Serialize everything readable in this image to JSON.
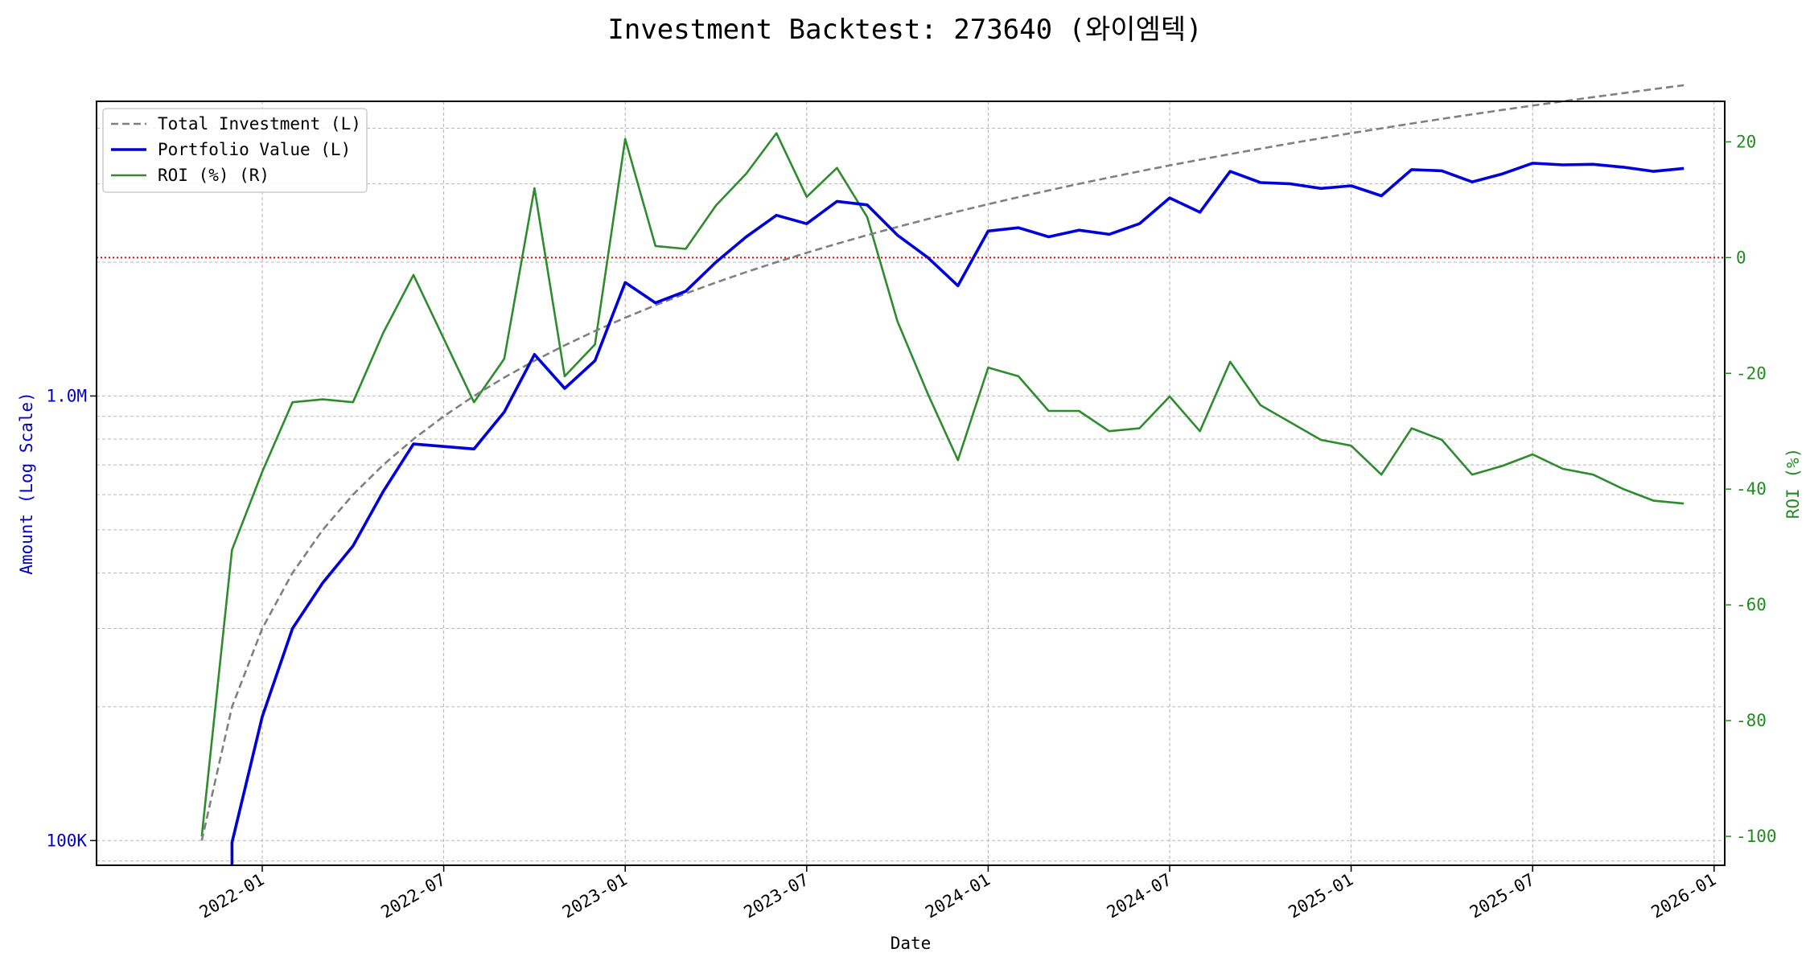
{
  "chart_data": {
    "type": "line",
    "title": "Investment Backtest: 273640 (와이엠텍)",
    "xlabel": "Date",
    "ylabel_left": "Amount (Log Scale)",
    "ylabel_right": "ROI (%)",
    "left_scale": "log",
    "left_ylim": [
      88000,
      4600000
    ],
    "right_ylim": [
      -105,
      27
    ],
    "grid": true,
    "legend_position": "top-left",
    "zero_roi_line_color": "#dd0000",
    "left_axis_color": "#0000cc",
    "right_axis_color": "#228b22",
    "x_ticks": [
      "2022-01",
      "2022-07",
      "2023-01",
      "2023-07",
      "2024-01",
      "2024-07",
      "2025-01",
      "2025-07",
      "2026-01"
    ],
    "left_ticks": [
      {
        "value": 100000,
        "label": "100K"
      },
      {
        "value": 1000000,
        "label": "1.0M"
      }
    ],
    "right_ticks": [
      {
        "value": 20,
        "label": "20"
      },
      {
        "value": 0,
        "label": "0"
      },
      {
        "value": -20,
        "label": "-20"
      },
      {
        "value": -40,
        "label": "-40"
      },
      {
        "value": -60,
        "label": "-60"
      },
      {
        "value": -80,
        "label": "-80"
      },
      {
        "value": -100,
        "label": "-100"
      }
    ],
    "x": [
      "2021-11",
      "2021-12",
      "2022-01",
      "2022-02",
      "2022-03",
      "2022-04",
      "2022-05",
      "2022-06",
      "2022-07",
      "2022-08",
      "2022-09",
      "2022-10",
      "2022-11",
      "2022-12",
      "2023-01",
      "2023-02",
      "2023-03",
      "2023-04",
      "2023-05",
      "2023-06",
      "2023-07",
      "2023-08",
      "2023-09",
      "2023-10",
      "2023-11",
      "2023-12",
      "2024-01",
      "2024-02",
      "2024-03",
      "2024-04",
      "2024-05",
      "2024-06",
      "2024-07",
      "2024-08",
      "2024-09",
      "2024-10",
      "2024-11",
      "2024-12",
      "2025-01",
      "2025-02",
      "2025-03",
      "2025-04",
      "2025-05",
      "2025-06",
      "2025-07",
      "2025-08",
      "2025-09",
      "2025-10",
      "2025-11",
      "2025-12"
    ],
    "series": [
      {
        "name": "Total Investment (L)",
        "axis": "left",
        "color": "#808080",
        "style": "dashed",
        "values": [
          100000,
          200000,
          300000,
          400000,
          500000,
          600000,
          700000,
          800000,
          900000,
          1000000,
          1100000,
          1200000,
          1300000,
          1400000,
          1500000,
          1600000,
          1700000,
          1800000,
          1900000,
          2000000,
          2100000,
          2200000,
          2300000,
          2400000,
          2500000,
          2600000,
          2700000,
          2800000,
          2900000,
          3000000,
          3100000,
          3200000,
          3300000,
          3400000,
          3500000,
          3600000,
          3700000,
          3800000,
          3900000,
          4000000,
          4100000,
          4200000,
          4300000,
          4400000,
          4500000,
          4600000,
          4700000,
          4800000,
          4900000,
          5000000
        ]
      },
      {
        "name": "Portfolio Value (L)",
        "axis": "left",
        "color": "#0000dd",
        "style": "solid",
        "values": [
          null,
          99000,
          190000,
          300000,
          380000,
          460000,
          610000,
          780000,
          770000,
          760000,
          920000,
          1240000,
          1040000,
          1200000,
          1800000,
          1620000,
          1720000,
          2000000,
          2280000,
          2550000,
          2440000,
          2740000,
          2690000,
          2300000,
          2050000,
          1770000,
          2350000,
          2390000,
          2280000,
          2360000,
          2310000,
          2440000,
          2790000,
          2590000,
          3200000,
          3020000,
          3000000,
          2930000,
          2970000,
          2820000,
          3230000,
          3210000,
          3030000,
          3160000,
          3340000,
          3310000,
          3320000,
          3270000,
          3200000,
          3250000
        ]
      },
      {
        "name": "ROI (%) (R)",
        "axis": "right",
        "color": "#2e8b2e",
        "style": "solid",
        "values": [
          -100,
          -50.5,
          -37,
          -25,
          -24.5,
          -25,
          -13,
          -3,
          -14,
          -25,
          -17.5,
          12,
          -20.5,
          -15,
          20.5,
          2,
          1.5,
          9,
          14.5,
          21.5,
          10.5,
          15.5,
          7,
          -11,
          -23.5,
          -35,
          -19,
          -20.5,
          -26.5,
          -26.5,
          -30,
          -29.5,
          -24,
          -30,
          -18,
          -25.5,
          -28.5,
          -31.5,
          -32.5,
          -37.5,
          -29.5,
          -31.5,
          -37.5,
          -36,
          -34,
          -36.5,
          -37.5,
          -40,
          -42,
          -42.5
        ]
      }
    ]
  }
}
